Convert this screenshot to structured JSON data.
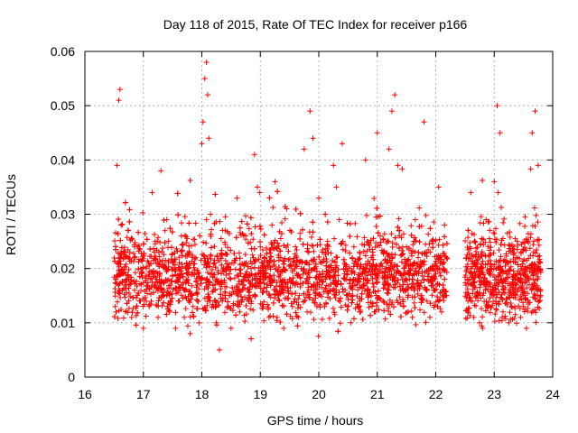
{
  "chart_data": {
    "type": "scatter",
    "title": "Day 118 of 2015, Rate Of TEC Index for receiver p166",
    "xlabel": "GPS time / hours",
    "ylabel": "ROTI / TECUs",
    "xlim": [
      16,
      24
    ],
    "ylim": [
      0,
      0.06
    ],
    "x_ticks": [
      16,
      17,
      18,
      19,
      20,
      21,
      22,
      23,
      24
    ],
    "y_ticks": [
      0,
      0.01,
      0.02,
      0.03,
      0.04,
      0.05,
      0.06
    ],
    "x_tick_labels": [
      "16",
      "17",
      "18",
      "19",
      "20",
      "21",
      "22",
      "23",
      "24"
    ],
    "y_tick_labels": [
      "0",
      "0.01",
      "0.02",
      "0.03",
      "0.04",
      "0.05",
      "0.06"
    ],
    "grid": true,
    "marker": "plus",
    "marker_color": "#ff0000",
    "data_coverage": {
      "segments": [
        [
          16.5,
          22.2
        ],
        [
          22.5,
          23.8
        ]
      ],
      "typical_range": [
        0.006,
        0.03
      ]
    },
    "series": [
      {
        "name": "ROTI",
        "x": [
          16.52,
          16.55,
          16.58,
          16.6,
          16.62,
          16.65,
          16.7,
          16.75,
          16.8,
          16.85,
          16.9,
          16.95,
          17.0,
          17.05,
          17.1,
          17.15,
          17.2,
          17.25,
          17.3,
          17.35,
          17.4,
          17.45,
          17.5,
          17.55,
          17.6,
          17.65,
          17.7,
          17.75,
          17.8,
          17.85,
          17.9,
          17.95,
          18.0,
          18.02,
          18.05,
          18.08,
          18.1,
          18.12,
          18.15,
          18.2,
          18.25,
          18.3,
          18.35,
          18.4,
          18.45,
          18.5,
          18.55,
          18.6,
          18.65,
          18.7,
          18.75,
          18.8,
          18.85,
          18.9,
          18.95,
          19.0,
          19.05,
          19.1,
          19.15,
          19.2,
          19.25,
          19.3,
          19.35,
          19.4,
          19.45,
          19.5,
          19.55,
          19.6,
          19.65,
          19.7,
          19.75,
          19.8,
          19.85,
          19.9,
          19.95,
          20.0,
          20.05,
          20.1,
          20.15,
          20.2,
          20.25,
          20.3,
          20.35,
          20.4,
          20.45,
          20.5,
          20.55,
          20.6,
          20.65,
          20.7,
          20.75,
          20.8,
          20.85,
          20.9,
          20.95,
          21.0,
          21.05,
          21.1,
          21.15,
          21.2,
          21.25,
          21.3,
          21.35,
          21.4,
          21.45,
          21.5,
          21.55,
          21.6,
          21.65,
          21.7,
          21.75,
          21.8,
          21.85,
          21.9,
          21.95,
          22.0,
          22.05,
          22.1,
          22.15,
          22.55,
          22.6,
          22.65,
          22.7,
          22.75,
          22.8,
          22.85,
          22.9,
          22.95,
          23.0,
          23.05,
          23.1,
          23.15,
          23.2,
          23.25,
          23.3,
          23.35,
          23.4,
          23.45,
          23.5,
          23.55,
          23.6,
          23.65,
          23.7,
          23.75
        ],
        "y": [
          0.013,
          0.039,
          0.051,
          0.053,
          0.028,
          0.019,
          0.012,
          0.018,
          0.011,
          0.016,
          0.024,
          0.014,
          0.009,
          0.02,
          0.013,
          0.034,
          0.017,
          0.011,
          0.038,
          0.015,
          0.029,
          0.012,
          0.021,
          0.009,
          0.014,
          0.026,
          0.011,
          0.019,
          0.008,
          0.013,
          0.022,
          0.01,
          0.043,
          0.047,
          0.055,
          0.058,
          0.052,
          0.044,
          0.03,
          0.016,
          0.01,
          0.005,
          0.014,
          0.027,
          0.013,
          0.009,
          0.021,
          0.033,
          0.012,
          0.017,
          0.026,
          0.014,
          0.019,
          0.041,
          0.035,
          0.024,
          0.013,
          0.019,
          0.011,
          0.028,
          0.036,
          0.015,
          0.022,
          0.009,
          0.031,
          0.018,
          0.013,
          0.024,
          0.011,
          0.02,
          0.042,
          0.012,
          0.049,
          0.044,
          0.015,
          0.033,
          0.021,
          0.013,
          0.025,
          0.016,
          0.039,
          0.035,
          0.029,
          0.043,
          0.018,
          0.013,
          0.01,
          0.024,
          0.017,
          0.014,
          0.019,
          0.04,
          0.015,
          0.022,
          0.012,
          0.045,
          0.026,
          0.014,
          0.02,
          0.042,
          0.049,
          0.052,
          0.039,
          0.016,
          0.013,
          0.024,
          0.018,
          0.011,
          0.029,
          0.022,
          0.015,
          0.047,
          0.014,
          0.011,
          0.025,
          0.019,
          0.035,
          0.012,
          0.028,
          0.014,
          0.034,
          0.011,
          0.015,
          0.01,
          0.009,
          0.016,
          0.013,
          0.02,
          0.036,
          0.05,
          0.045,
          0.012,
          0.018,
          0.01,
          0.015,
          0.013,
          0.022,
          0.011,
          0.013,
          0.009,
          0.017,
          0.045,
          0.049,
          0.039
        ]
      }
    ]
  }
}
